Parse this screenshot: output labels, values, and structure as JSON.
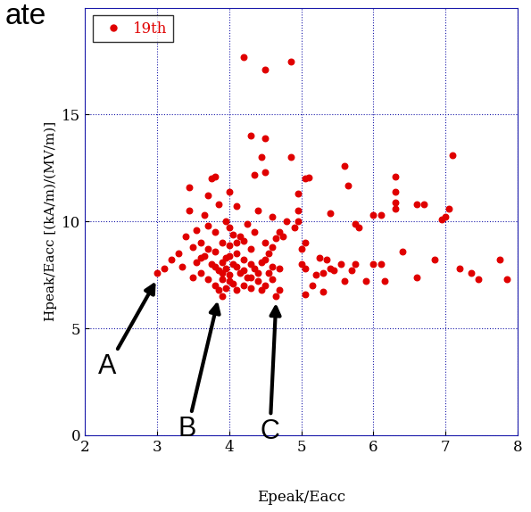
{
  "chart_data": {
    "type": "scatter",
    "title": "ate",
    "x_label": "Epeak/Eacc",
    "y_label": "Hpeak/Eacc [(kA/m)/(MV/m)]",
    "series": [
      {
        "name": "19th",
        "color": "#e00000",
        "marker": "o",
        "x": [
          3.0,
          3.1,
          3.2,
          3.3,
          3.35,
          3.4,
          3.45,
          3.45,
          3.5,
          3.5,
          3.55,
          3.55,
          3.6,
          3.6,
          3.65,
          3.65,
          3.7,
          3.7,
          3.7,
          3.75,
          3.75,
          3.8,
          3.8,
          3.8,
          3.8,
          3.85,
          3.85,
          3.85,
          3.9,
          3.9,
          3.9,
          3.95,
          3.95,
          3.95,
          4.0,
          4.0,
          4.0,
          4.0,
          4.05,
          4.05,
          4.1,
          4.1,
          4.1,
          4.15,
          4.15,
          4.2,
          4.2,
          4.2,
          4.25,
          4.25,
          4.3,
          4.3,
          4.3,
          4.35,
          4.35,
          4.35,
          4.4,
          4.4,
          4.45,
          4.45,
          4.5,
          4.5,
          4.5,
          4.5,
          4.5,
          4.55,
          4.55,
          4.6,
          4.6,
          4.6,
          4.65,
          4.65,
          4.7,
          4.7,
          4.7,
          4.75,
          4.8,
          4.85,
          4.85,
          4.9,
          4.95,
          4.95,
          4.95,
          5.0,
          5.0,
          5.05,
          5.05,
          5.05,
          5.05,
          5.1,
          5.15,
          5.2,
          5.25,
          5.3,
          5.3,
          5.35,
          5.4,
          5.4,
          5.45,
          5.55,
          5.6,
          5.6,
          5.65,
          5.7,
          5.75,
          5.75,
          5.8,
          5.9,
          6.0,
          6.0,
          6.1,
          6.1,
          6.15,
          6.3,
          6.3,
          6.3,
          6.3,
          6.4,
          6.6,
          6.6,
          6.7,
          6.85,
          6.95,
          7.0,
          7.05,
          7.1,
          7.2,
          7.35,
          7.45,
          7.75,
          7.85,
          3.6,
          3.7,
          3.8,
          3.9,
          4.0,
          4.1,
          4.2,
          4.3,
          4.4,
          4.5,
          4.6,
          4.0,
          3.9,
          4.1,
          4.2,
          4.3,
          4.45,
          3.95,
          4.05
        ],
        "values": [
          7.6,
          7.8,
          8.2,
          8.5,
          7.9,
          9.3,
          10.5,
          11.6,
          8.8,
          7.4,
          9.6,
          8.1,
          7.6,
          9.0,
          10.3,
          8.4,
          7.3,
          9.8,
          11.2,
          8.0,
          12.0,
          12.1,
          9.5,
          7.0,
          8.6,
          6.8,
          10.8,
          7.7,
          6.5,
          9.0,
          7.3,
          8.3,
          10.0,
          6.9,
          11.4,
          7.5,
          8.9,
          9.7,
          7.1,
          8.0,
          10.7,
          6.8,
          8.5,
          7.6,
          9.3,
          7.0,
          8.2,
          17.7,
          9.9,
          7.4,
          14.0,
          8.7,
          6.9,
          12.2,
          7.8,
          9.5,
          7.2,
          10.5,
          13.0,
          8.1,
          17.1,
          13.9,
          12.3,
          7.0,
          9.0,
          7.6,
          8.5,
          10.2,
          7.3,
          8.8,
          6.5,
          9.2,
          6.8,
          9.5,
          7.8,
          9.3,
          10.0,
          17.5,
          13.0,
          9.7,
          10.0,
          10.5,
          11.3,
          8.0,
          8.7,
          7.8,
          9.0,
          6.6,
          12.0,
          12.05,
          7.0,
          7.5,
          8.3,
          6.7,
          7.6,
          8.2,
          7.8,
          10.4,
          7.7,
          8.0,
          7.2,
          12.6,
          11.7,
          7.7,
          8.0,
          9.9,
          9.7,
          7.2,
          8.0,
          10.3,
          8.0,
          10.3,
          7.2,
          12.1,
          11.4,
          10.9,
          10.6,
          8.6,
          10.8,
          7.4,
          10.8,
          8.2,
          10.1,
          10.2,
          10.6,
          13.1,
          7.8,
          7.6,
          7.3,
          8.2,
          7.3,
          8.3,
          8.7,
          7.9,
          8.1,
          7.2,
          7.9,
          7.7,
          8.0,
          7.6,
          8.2,
          7.9,
          8.4,
          7.6,
          9.0,
          9.1,
          7.4,
          6.8,
          7.8,
          9.4
        ]
      }
    ],
    "annotations": [
      {
        "text": "A",
        "x": 3.0,
        "y": 7.3
      },
      {
        "text": "B",
        "x": 3.85,
        "y": 6.4
      },
      {
        "text": "C",
        "x": 4.65,
        "y": 6.3
      }
    ],
    "xlim": [
      2,
      8
    ],
    "xticks": [
      2,
      3,
      4,
      5,
      6,
      7,
      8
    ],
    "ylim": [
      0,
      20
    ],
    "yticks": [
      0,
      5,
      10,
      15
    ],
    "grid": true,
    "legend": "upper left"
  }
}
